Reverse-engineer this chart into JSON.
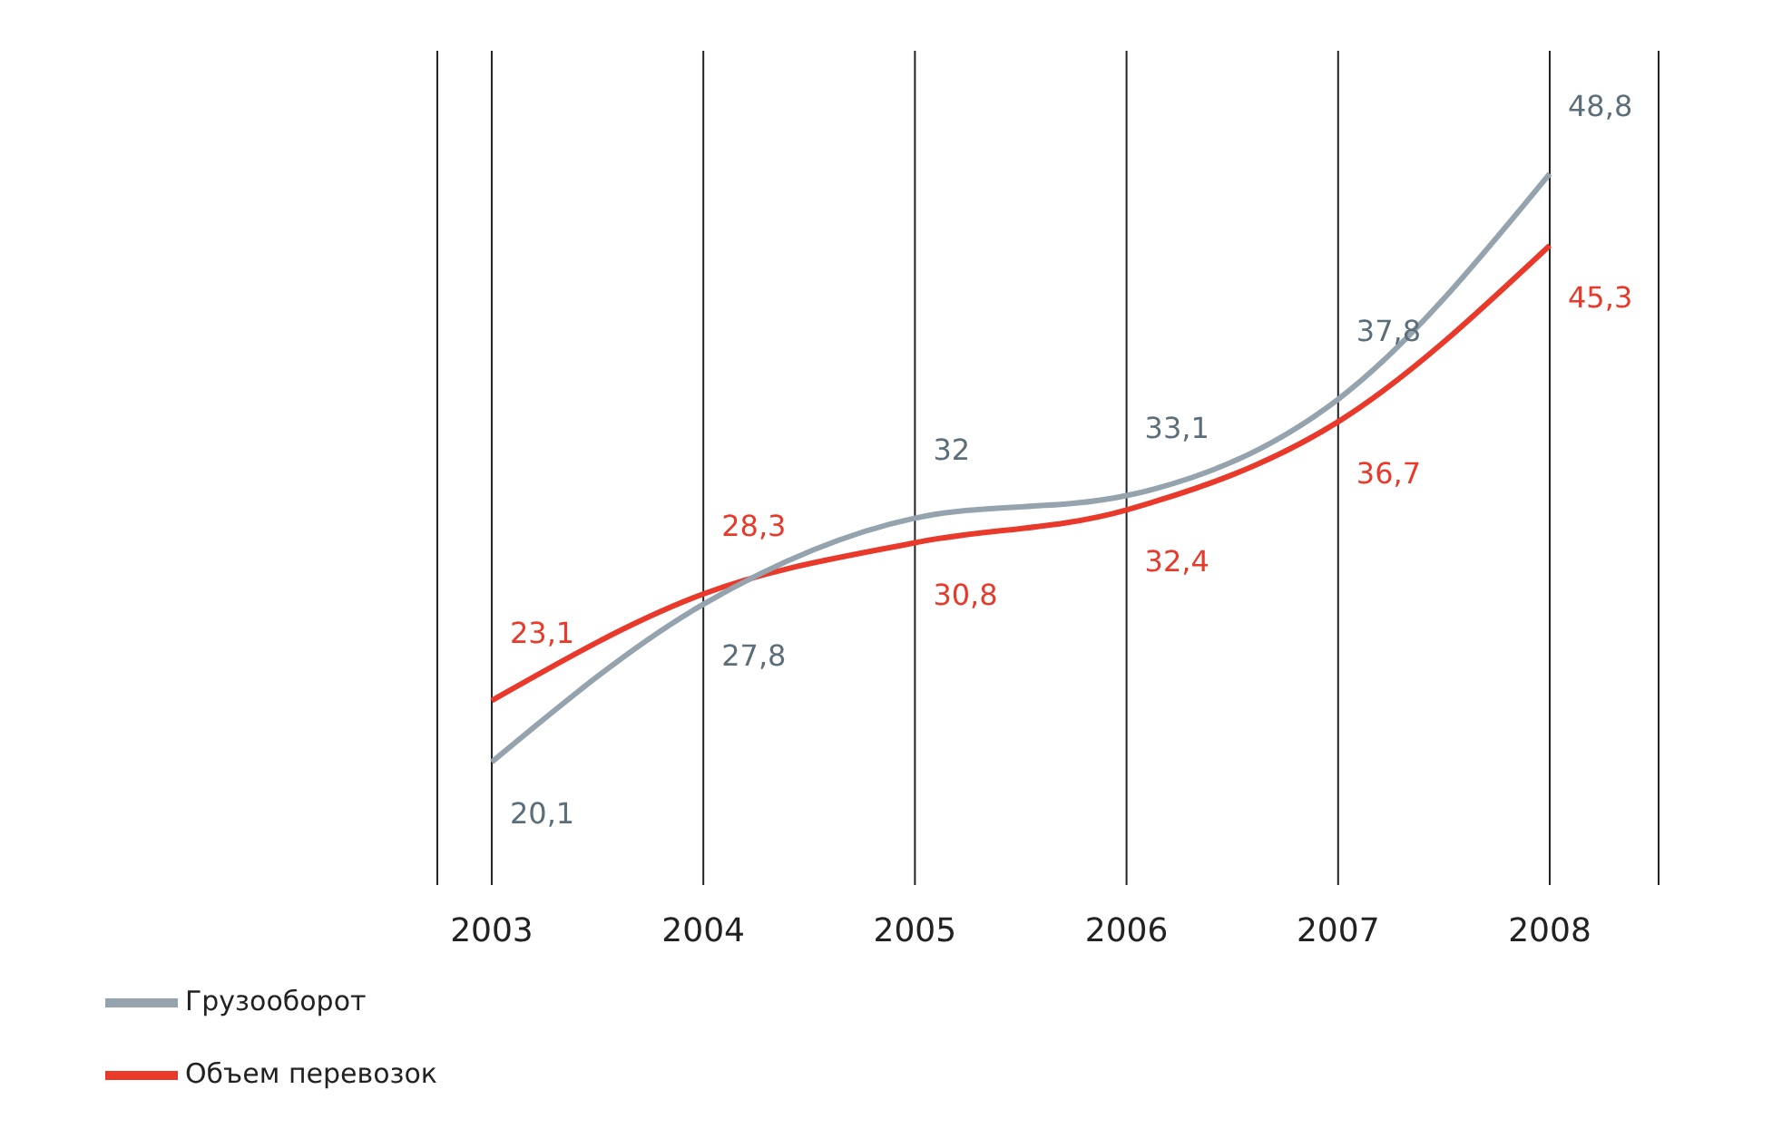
{
  "chart_data": {
    "type": "line",
    "categories": [
      "2003",
      "2004",
      "2005",
      "2006",
      "2007",
      "2008"
    ],
    "series": [
      {
        "name": "Объем перевозок",
        "color": "#e8392a",
        "values": [
          23.1,
          28.3,
          30.8,
          32.4,
          36.7,
          45.3
        ],
        "value_labels": [
          "23,1",
          "28,3",
          "30,8",
          "32,4",
          "36,7",
          "45,3"
        ]
      },
      {
        "name": "Грузооборот",
        "color": "#94a3ad",
        "values": [
          20.1,
          27.8,
          32,
          33.1,
          37.8,
          48.8
        ],
        "value_labels": [
          "20,1",
          "27,8",
          "32",
          "33,1",
          "37,8",
          "48,8"
        ]
      }
    ],
    "grid": "x",
    "legend": "bottom left",
    "marker": "none",
    "line_style": "solid"
  }
}
